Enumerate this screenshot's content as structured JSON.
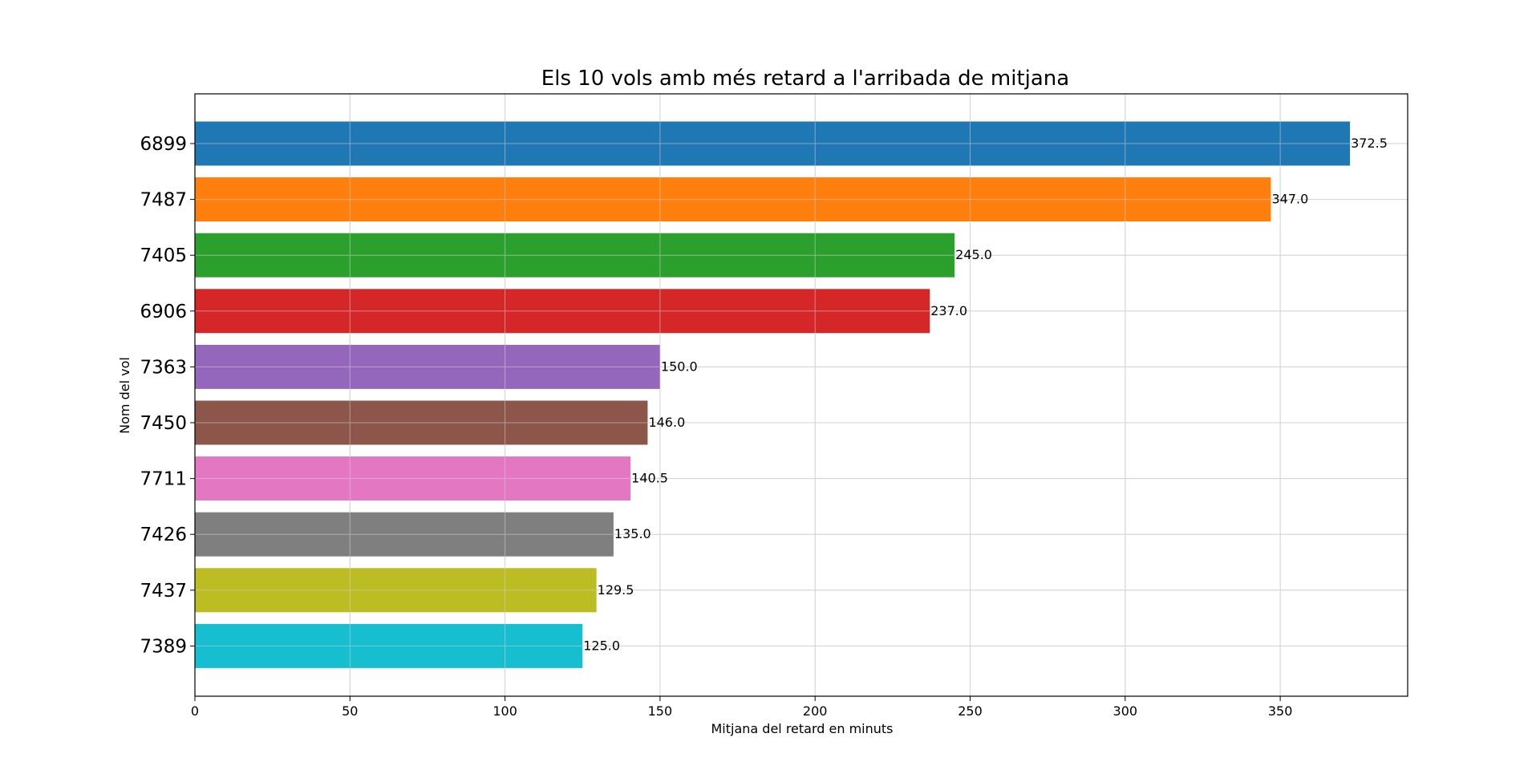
{
  "chart_data": {
    "type": "bar",
    "orientation": "horizontal",
    "title": "Els 10 vols amb més retard a l'arribada de mitjana",
    "xlabel": "Mitjana del retard en minuts",
    "ylabel": "Nom del vol",
    "categories": [
      "6899",
      "7487",
      "7405",
      "6906",
      "7363",
      "7450",
      "7711",
      "7426",
      "7437",
      "7389"
    ],
    "values": [
      372.5,
      347.0,
      245.0,
      237.0,
      150.0,
      146.0,
      140.5,
      135.0,
      129.5,
      125.0
    ],
    "value_labels": [
      "372.5",
      "347.0",
      "245.0",
      "237.0",
      "150.0",
      "146.0",
      "140.5",
      "135.0",
      "129.5",
      "125.0"
    ],
    "colors": [
      "#1f77b4",
      "#ff7f0e",
      "#2ca02c",
      "#d62728",
      "#9467bd",
      "#8c564b",
      "#e377c2",
      "#7f7f7f",
      "#bcbd22",
      "#17becf"
    ],
    "xlim": [
      0,
      391.1
    ],
    "xticks": [
      0,
      50,
      100,
      150,
      200,
      250,
      300,
      350
    ],
    "grid": true,
    "grid_color": "#d3d3d3"
  }
}
